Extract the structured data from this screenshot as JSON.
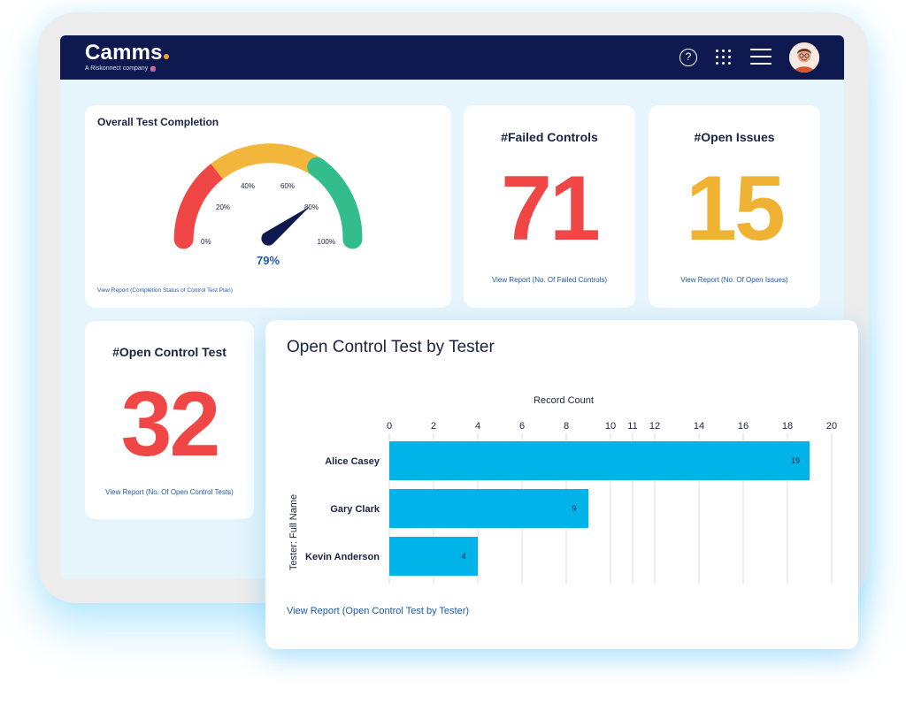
{
  "brand": {
    "name": "Camms",
    "subtitle": "A Riskonnect company"
  },
  "header": {
    "icons": [
      "help-icon",
      "apps-grid-icon",
      "hamburger-menu-icon",
      "user-avatar"
    ]
  },
  "gauge_card": {
    "title": "Overall Test Completion",
    "value": 79,
    "value_label": "79%",
    "tick_labels": [
      "0%",
      "20%",
      "40%",
      "60%",
      "80%",
      "100%"
    ],
    "link": "View Report (Completion Status of Control Test Plan)",
    "colors": {
      "red": "#f04646",
      "yellow": "#f2b63c",
      "green": "#33bd8c",
      "needle": "#0e1a4f"
    }
  },
  "kpis": {
    "failed_controls": {
      "title": "#Failed Controls",
      "value": "71",
      "link": "View Report (No. Of Failed Controls)",
      "color": "#f04646"
    },
    "open_issues": {
      "title": "#Open Issues",
      "value": "15",
      "link": "View Report (No. Of Open Issues)",
      "color": "#f0b232"
    },
    "open_control_test": {
      "title": "#Open Control Test",
      "value": "32",
      "link": "View Report (No. Of Open Control Tests)",
      "color": "#f04646"
    }
  },
  "chart_card": {
    "title": "Open Control Test by Tester",
    "link": "View Report (Open Control Test by Tester)"
  },
  "chart_data": {
    "type": "bar",
    "orientation": "horizontal",
    "title": "Open Control Test by Tester",
    "xlabel": "Record Count",
    "ylabel": "Tester: Full Name",
    "categories": [
      "Alice Casey",
      "Gary Clark",
      "Kevin Anderson"
    ],
    "values": [
      19,
      9,
      4
    ],
    "xlim": [
      0,
      20
    ],
    "xticks": [
      0,
      2,
      4,
      6,
      8,
      10,
      11,
      12,
      14,
      16,
      18,
      20
    ],
    "grid": true,
    "bar_color": "#00b4ea"
  }
}
